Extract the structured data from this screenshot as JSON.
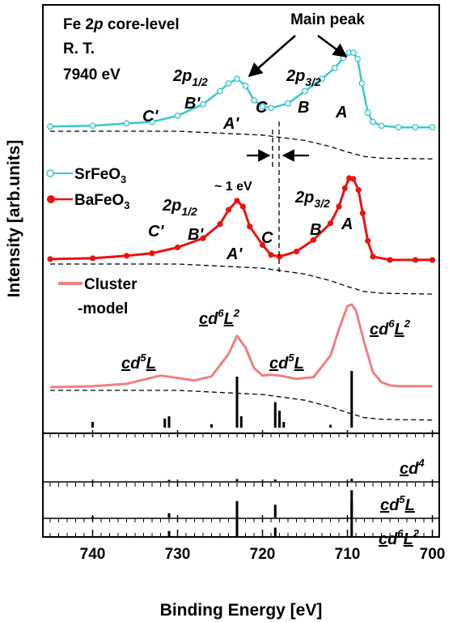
{
  "chart_data": {
    "type": "line",
    "xlabel": "Binding Energy [eV]",
    "ylabel": "Intensity [arb.units]",
    "xlim": [
      745,
      700
    ],
    "x_reversed": true,
    "x_ticks": [
      740,
      730,
      720,
      710,
      700
    ],
    "corner_text": [
      "Fe 2p core-level",
      "R. T.",
      "7940 eV"
    ],
    "annotations": {
      "main_peak": "Main peak",
      "shift": "~ 1 eV",
      "sr": {
        "p12": "2p1/2",
        "p32": "2p3/2",
        "A": "A",
        "B": "B",
        "C": "C",
        "Ap": "A'",
        "Bp": "B'",
        "Cp": "C'"
      },
      "ba": {
        "p12": "2p1/2",
        "p32": "2p3/2",
        "A": "A",
        "B": "B",
        "C": "C",
        "Ap": "A'",
        "Bp": "B'",
        "Cp": "C'"
      },
      "cluster": {
        "l1": "cd5L",
        "l2": "cd6L2",
        "l3": "cd5L",
        "l4": "cd6L2"
      }
    },
    "legend": [
      {
        "name": "SrFeO3",
        "color": "#3cc8c8",
        "marker": "open-circle"
      },
      {
        "name": "BaFeO3",
        "color": "#ee1111",
        "marker": "filled-circle"
      },
      {
        "name": "Cluster -model",
        "color": "#f08080",
        "marker": "line"
      }
    ],
    "subpanel_labels": [
      "cd4",
      "cd5L",
      "cd6L2"
    ],
    "series": [
      {
        "name": "SrFeO3",
        "x": [
          745,
          740,
          736,
          733,
          730,
          727,
          725,
          724,
          723,
          722,
          721,
          720,
          719,
          717,
          715,
          713,
          711.5,
          710.5,
          709.8,
          709.3,
          708.8,
          708.3,
          707.6,
          707,
          706,
          704,
          702,
          700
        ],
        "y": [
          0.04,
          0.05,
          0.08,
          0.1,
          0.18,
          0.33,
          0.5,
          0.6,
          0.66,
          0.57,
          0.38,
          0.3,
          0.28,
          0.34,
          0.5,
          0.66,
          0.8,
          0.93,
          1.0,
          1.0,
          0.92,
          0.6,
          0.22,
          0.1,
          0.05,
          0.03,
          0.03,
          0.03
        ]
      },
      {
        "name": "BaFeO3",
        "x": [
          745,
          740,
          736,
          733,
          730,
          727,
          725,
          724,
          723,
          722.3,
          721.5,
          720,
          719,
          718,
          716,
          714,
          712,
          711,
          710.3,
          709.8,
          709.3,
          708.7,
          708.2,
          707.6,
          707,
          705,
          702,
          700
        ],
        "y": [
          0.03,
          0.04,
          0.07,
          0.1,
          0.17,
          0.28,
          0.45,
          0.62,
          0.73,
          0.66,
          0.42,
          0.2,
          0.08,
          0.06,
          0.12,
          0.26,
          0.46,
          0.66,
          0.88,
          1.0,
          0.99,
          0.86,
          0.58,
          0.25,
          0.06,
          0.02,
          0.02,
          0.02
        ]
      },
      {
        "name": "Cluster-model",
        "x": [
          745,
          740,
          736,
          734,
          732,
          730,
          728,
          726,
          724,
          723,
          722,
          721,
          720,
          719,
          718,
          716,
          714,
          712,
          711,
          710,
          709.5,
          709,
          708,
          707,
          706,
          705,
          704,
          702,
          700
        ],
        "y": [
          0.02,
          0.03,
          0.06,
          0.11,
          0.16,
          0.13,
          0.1,
          0.15,
          0.42,
          0.64,
          0.5,
          0.25,
          0.16,
          0.17,
          0.16,
          0.12,
          0.14,
          0.4,
          0.72,
          1.0,
          1.02,
          0.95,
          0.55,
          0.2,
          0.08,
          0.04,
          0.03,
          0.03,
          0.03
        ]
      }
    ],
    "background_curves": [
      {
        "name": "SrFeO3 background",
        "x": [
          745,
          730,
          720,
          715,
          712,
          710,
          708,
          706,
          700
        ],
        "y": [
          0.0,
          0.0,
          -0.05,
          -0.12,
          -0.2,
          -0.27,
          -0.33,
          -0.35,
          -0.36
        ]
      },
      {
        "name": "BaFeO3 background",
        "x": [
          745,
          730,
          720,
          715,
          712,
          710,
          708,
          706,
          700
        ],
        "y": [
          0.0,
          0.0,
          -0.05,
          -0.12,
          -0.2,
          -0.27,
          -0.33,
          -0.35,
          -0.36
        ]
      },
      {
        "name": "Cluster background",
        "x": [
          745,
          730,
          720,
          715,
          712,
          710,
          708,
          706,
          700
        ],
        "y": [
          0.0,
          0.0,
          -0.05,
          -0.12,
          -0.2,
          -0.27,
          -0.33,
          -0.35,
          -0.36
        ]
      }
    ],
    "sticks": [
      {
        "panel": "main",
        "x": [
          740,
          731.5,
          731,
          726,
          723,
          722.5,
          718.5,
          718,
          717.5,
          712,
          709.5
        ],
        "h": [
          0.1,
          0.16,
          0.2,
          0.06,
          0.9,
          0.2,
          0.45,
          0.3,
          0.1,
          0.05,
          1.0
        ]
      },
      {
        "panel": "cd4",
        "x": [
          731,
          723,
          718.5,
          709.5
        ],
        "h": [
          0.03,
          0.05,
          0.04,
          0.06
        ]
      },
      {
        "panel": "cd5L",
        "x": [
          740,
          731,
          723,
          718.5,
          709.5
        ],
        "h": [
          0.02,
          0.12,
          0.45,
          0.35,
          0.75
        ]
      },
      {
        "panel": "cd6L2",
        "x": [
          731,
          723,
          718.5,
          709.5
        ],
        "h": [
          0.15,
          0.9,
          0.25,
          1.0
        ]
      }
    ]
  }
}
